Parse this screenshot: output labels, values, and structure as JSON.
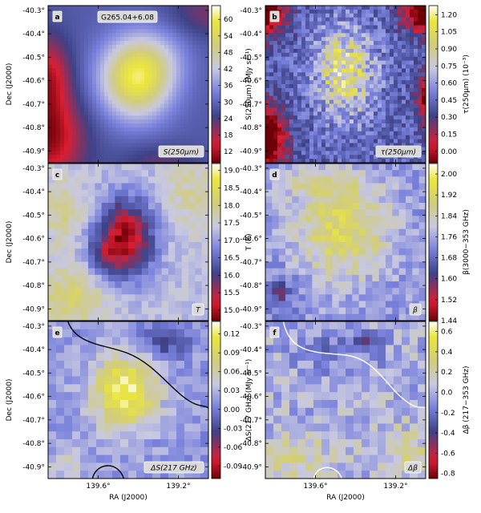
{
  "figure": {
    "ra_ticks": [
      "139.6°",
      "139.2°"
    ],
    "ra_label": "RA (J2000)",
    "dec_ticks": [
      "-40.3°",
      "-40.4°",
      "-40.5°",
      "-40.6°",
      "-40.7°",
      "-40.8°",
      "-40.9°"
    ],
    "dec_label": "Dec (J2000)"
  },
  "chart_data": [
    {
      "type": "heatmap",
      "panel": "a",
      "colormap": "planck-pink-blue-yellow",
      "title": "G265.04+6.08",
      "map_label": "S(250μm)",
      "colorbar_label": "S(250μm) (MJy sr⁻¹)",
      "colorbar_ticks": [
        "60",
        "54",
        "48",
        "42",
        "36",
        "30",
        "24",
        "18",
        "12"
      ],
      "colorbar_range": [
        8,
        65
      ],
      "xlim": [
        139.85,
        139.05
      ],
      "ylim": [
        -40.95,
        -40.28
      ]
    },
    {
      "type": "heatmap",
      "panel": "b",
      "colormap": "planck-pink-blue-yellow",
      "map_label": "τ(250μm)",
      "colorbar_label": "τ(250μm) (10⁻³)",
      "colorbar_ticks": [
        "1.20",
        "1.05",
        "0.90",
        "0.75",
        "0.60",
        "0.45",
        "0.30",
        "0.15",
        "0.00"
      ],
      "colorbar_range": [
        -0.1,
        1.28
      ],
      "xlim": [
        139.85,
        139.05
      ],
      "ylim": [
        -40.95,
        -40.28
      ]
    },
    {
      "type": "heatmap",
      "panel": "c",
      "colormap": "planck-pink-blue-yellow-reversed",
      "map_label": "T",
      "colorbar_label": "T (K)",
      "colorbar_ticks": [
        "19.0",
        "18.5",
        "18.0",
        "17.5",
        "17.0",
        "16.5",
        "16.0",
        "15.5",
        "15.0"
      ],
      "colorbar_range": [
        14.7,
        19.2
      ],
      "xlim": [
        139.85,
        139.05
      ],
      "ylim": [
        -40.95,
        -40.28
      ]
    },
    {
      "type": "heatmap",
      "panel": "d",
      "colormap": "planck-pink-blue-yellow",
      "map_label": "β",
      "colorbar_label": "β(3000−353 GHz)",
      "colorbar_ticks": [
        "2.00",
        "1.92",
        "1.84",
        "1.76",
        "1.68",
        "1.60",
        "1.52",
        "1.44"
      ],
      "colorbar_range": [
        1.44,
        2.04
      ],
      "xlim": [
        139.85,
        139.05
      ],
      "ylim": [
        -40.95,
        -40.28
      ]
    },
    {
      "type": "heatmap",
      "panel": "e",
      "colormap": "planck-pink-blue-yellow",
      "map_label": "ΔS(217 GHz)",
      "colorbar_label": "ΔS(217 GHz) (MJy sr⁻¹)",
      "colorbar_ticks": [
        "0.12",
        "0.09",
        "0.06",
        "0.03",
        "0.00",
        "-0.03",
        "-0.06",
        "-0.09"
      ],
      "colorbar_range": [
        -0.11,
        0.14
      ],
      "xlim": [
        139.85,
        139.05
      ],
      "ylim": [
        -40.95,
        -40.28
      ]
    },
    {
      "type": "heatmap",
      "panel": "f",
      "colormap": "planck-pink-blue-yellow",
      "map_label": "Δβ",
      "colorbar_label": "Δβ (217−353 GHz)",
      "colorbar_ticks": [
        "0.6",
        "0.4",
        "0.2",
        "0.0",
        "-0.2",
        "-0.4",
        "-0.6",
        "-0.8"
      ],
      "colorbar_range": [
        -0.85,
        0.7
      ],
      "xlim": [
        139.85,
        139.05
      ],
      "ylim": [
        -40.95,
        -40.28
      ]
    }
  ]
}
